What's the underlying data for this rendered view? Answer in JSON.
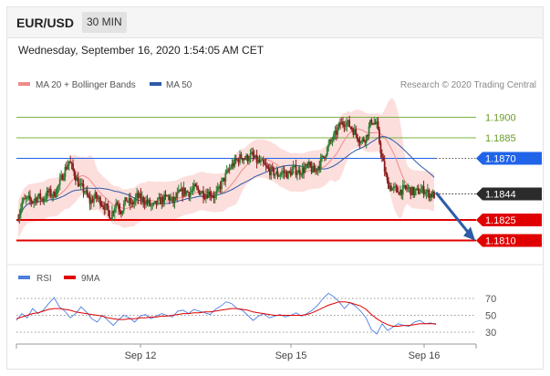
{
  "header": {
    "pair": "EUR/USD",
    "timeframe": "30 MIN"
  },
  "datetime": "Wednesday, September 16, 2020 1:54:05 AM CET",
  "legend": [
    {
      "label": "MA 20 + Bollinger Bands",
      "color": "#f08a8a"
    },
    {
      "label": "MA 50",
      "color": "#2d5aa8"
    }
  ],
  "credit": "Research © 2020 Trading Central",
  "chart_data": [
    {
      "type": "candlestick",
      "title": "",
      "ylim": [
        1.1795,
        1.1915
      ],
      "x_ticks": [
        "Sep 12",
        "Sep 15",
        "Sep 16"
      ],
      "levels": [
        {
          "value": 1.19,
          "label": "1.1900",
          "style": "line",
          "color": "#7cb342"
        },
        {
          "value": 1.1885,
          "label": "1.1885",
          "style": "line",
          "color": "#7cb342"
        },
        {
          "value": 1.187,
          "label": "1.1870",
          "style": "box",
          "color": "#1f63e8"
        },
        {
          "value": 1.1844,
          "label": "1.1844",
          "style": "box",
          "color": "#2b2b2b"
        },
        {
          "value": 1.1825,
          "label": "1.1825",
          "style": "box",
          "color": "#e00000"
        },
        {
          "value": 1.181,
          "label": "1.1810",
          "style": "box",
          "color": "#e00000"
        }
      ],
      "price_path": [
        1.1825,
        1.1838,
        1.184,
        1.1839,
        1.1842,
        1.184,
        1.1845,
        1.1843,
        1.185,
        1.186,
        1.1868,
        1.1859,
        1.185,
        1.1846,
        1.1838,
        1.1842,
        1.1839,
        1.1834,
        1.1828,
        1.1838,
        1.1832,
        1.184,
        1.1836,
        1.1842,
        1.184,
        1.1838,
        1.1834,
        1.1838,
        1.184,
        1.1842,
        1.1838,
        1.1844,
        1.1846,
        1.1845,
        1.1848,
        1.1846,
        1.1844,
        1.1845,
        1.1842,
        1.185,
        1.1857,
        1.1864,
        1.1868,
        1.1871,
        1.187,
        1.1872,
        1.1868,
        1.1866,
        1.1862,
        1.186,
        1.1858,
        1.186,
        1.1858,
        1.1862,
        1.186,
        1.1862,
        1.1864,
        1.186,
        1.1866,
        1.1873,
        1.1881,
        1.1887,
        1.1895,
        1.1897,
        1.1893,
        1.1888,
        1.1882,
        1.1886,
        1.1898,
        1.1894,
        1.187,
        1.1852,
        1.1848,
        1.1846,
        1.1847,
        1.1848,
        1.1845,
        1.1846,
        1.1847,
        1.1844,
        1.1843
      ],
      "arrow": {
        "from": 1.1845,
        "to": 1.181
      }
    },
    {
      "type": "line",
      "title": "RSI",
      "series": [
        {
          "name": "RSI",
          "color": "#4a7fe0"
        },
        {
          "name": "9MA",
          "color": "#e00000"
        }
      ],
      "y_ticks": [
        70,
        50,
        30
      ],
      "rsi": [
        44,
        52,
        47,
        58,
        52,
        56,
        64,
        71,
        60,
        55,
        47,
        52,
        60,
        54,
        46,
        42,
        50,
        44,
        38,
        45,
        50,
        47,
        42,
        49,
        51,
        46,
        49,
        52,
        50,
        48,
        55,
        56,
        52,
        57,
        55,
        53,
        51,
        57,
        61,
        66,
        64,
        58,
        56,
        50,
        44,
        49,
        52,
        47,
        49,
        51,
        48,
        50,
        53,
        49,
        52,
        56,
        62,
        70,
        76,
        72,
        66,
        58,
        65,
        61,
        55,
        47,
        33,
        28,
        40,
        32,
        36,
        40,
        38,
        37,
        42,
        44,
        40,
        41,
        39
      ],
      "ma9": [
        46,
        48,
        50,
        52,
        53,
        55,
        57,
        58,
        58,
        57,
        56,
        54,
        53,
        52,
        51,
        50,
        49,
        47,
        46,
        45,
        45,
        46,
        46,
        47,
        47,
        48,
        48,
        49,
        49,
        50,
        51,
        52,
        52,
        53,
        53,
        54,
        54,
        55,
        56,
        57,
        58,
        58,
        57,
        56,
        54,
        53,
        52,
        51,
        50,
        50,
        50,
        50,
        50,
        50,
        51,
        53,
        56,
        59,
        62,
        64,
        66,
        66,
        65,
        63,
        61,
        57,
        51,
        46,
        42,
        39,
        37,
        37,
        38,
        38,
        39,
        40,
        40,
        40,
        40
      ]
    }
  ]
}
